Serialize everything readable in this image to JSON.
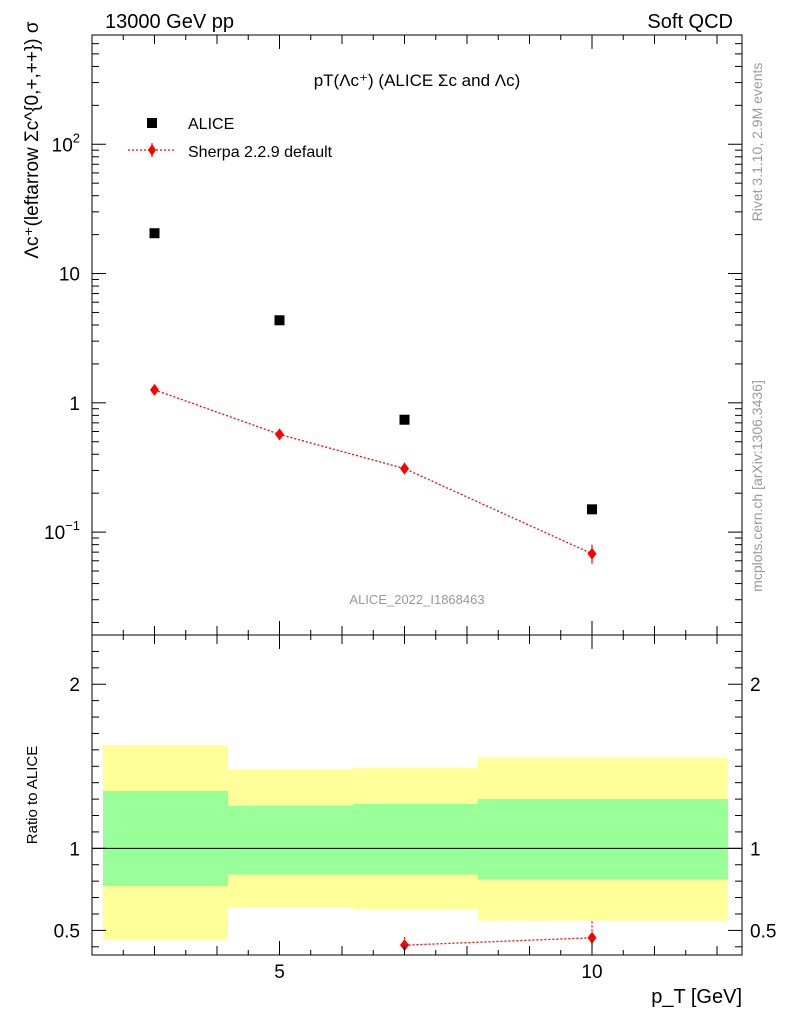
{
  "header": {
    "left": "13000 GeV pp",
    "right": "Soft QCD"
  },
  "side_labels": {
    "rivet": "Rivet 3.1.10,  2.9M events",
    "source": "mcplots.cern.ch [arXiv:1306.3436]"
  },
  "chart_data": [
    {
      "type": "scatter",
      "title": "pT(Λc⁺) (ALICE Σc and Λc)",
      "ylabel": "Λc⁺(leftarrow Σc^{0,+,++}) σ",
      "yscale": "log",
      "ylim": [
        0.016,
        700
      ],
      "xlim": [
        2,
        12.4
      ],
      "watermark": "ALICE_2022_I1868463",
      "legend_position": "top-left",
      "y_ticks": [
        {
          "value": 100,
          "base": "10",
          "exp": "2"
        },
        {
          "value": 10,
          "base": "10",
          "exp": ""
        },
        {
          "value": 1,
          "base": "1",
          "exp": ""
        },
        {
          "value": 0.1,
          "base": "10",
          "exp": "−1"
        }
      ],
      "series": [
        {
          "name": "ALICE",
          "color": "#000000",
          "marker": "square",
          "x": [
            3,
            5,
            7,
            10
          ],
          "y": [
            20.5,
            4.35,
            0.74,
            0.15
          ]
        },
        {
          "name": "Sherpa 2.2.9 default",
          "color": "#ff0000",
          "marker": "diamond",
          "line": "dotted",
          "x": [
            3,
            5,
            7,
            10
          ],
          "y": [
            1.26,
            0.57,
            0.31,
            0.068
          ],
          "yerr_low": [
            0.06,
            0.025,
            0.03,
            0.011
          ],
          "yerr_high": [
            0.06,
            0.025,
            0.035,
            0.012
          ]
        }
      ]
    },
    {
      "type": "area",
      "ylabel": "Ratio to ALICE",
      "xlabel": "p_T [GeV]",
      "ylim": [
        0.35,
        2.3
      ],
      "xlim": [
        2,
        12.4
      ],
      "y_ticks": [
        0.5,
        1,
        2
      ],
      "x_ticks": [
        5,
        10
      ],
      "reference": 1,
      "bands": [
        {
          "name": "total uncertainty",
          "color": "#ffff99",
          "bins": [
            [
              2,
              4,
              0.44,
              1.63
            ],
            [
              4,
              6,
              0.64,
              1.48
            ],
            [
              6,
              8,
              0.63,
              1.49
            ],
            [
              8,
              12.0,
              0.56,
              1.55
            ]
          ]
        },
        {
          "name": "stat uncertainty",
          "color": "#99ff99",
          "bins": [
            [
              2,
              4,
              0.77,
              1.35
            ],
            [
              4,
              6,
              0.84,
              1.26
            ],
            [
              6,
              8,
              0.84,
              1.27
            ],
            [
              8,
              12.0,
              0.81,
              1.3
            ]
          ]
        }
      ],
      "series": [
        {
          "name": "Sherpa 2.2.9 default",
          "color": "#ff0000",
          "x": [
            7,
            10
          ],
          "y": [
            0.41,
            0.455
          ],
          "yerr_low": [
            0.04,
            0.07
          ],
          "yerr_high": [
            0.05,
            0.1
          ]
        }
      ]
    }
  ]
}
